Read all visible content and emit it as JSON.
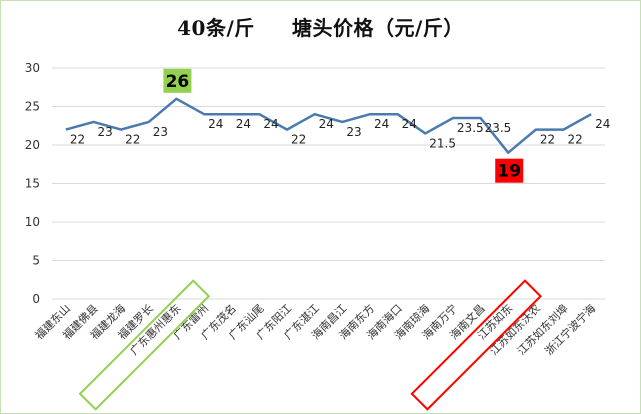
{
  "chart_data": {
    "type": "line",
    "title": "40条/斤     塘头价格（元/斤）",
    "xlabel": "",
    "ylabel": "",
    "ylim": [
      0,
      30
    ],
    "yticks": [
      0,
      5,
      10,
      15,
      20,
      25,
      30
    ],
    "grid": true,
    "legend": "none",
    "categories": [
      "福建东山",
      "福建佛县",
      "福建龙海",
      "福建罗长",
      "广东惠州惠东",
      "广东雷州",
      "广东茂名",
      "广东汕尾",
      "广东阳江",
      "广东湛江",
      "海南昌江",
      "海南东方",
      "海南海口",
      "海南琼海",
      "海南万宁",
      "海南文昌",
      "江苏如东",
      "江苏如东沃农",
      "江苏如东刘埠",
      "浙江宁波宁海"
    ],
    "series": [
      {
        "values": [
          22,
          23,
          22,
          23,
          26,
          24,
          24,
          24,
          22,
          24,
          23,
          24,
          24,
          21.5,
          23.5,
          23.5,
          19,
          22,
          22,
          24
        ]
      }
    ],
    "labels": [
      "22",
      "23",
      "22",
      "23",
      "26",
      "24",
      "24",
      "24",
      "22",
      "24",
      "23",
      "24",
      "24",
      "21.5",
      "23.5",
      "23.5",
      "19",
      "22",
      "22",
      "24"
    ],
    "callouts": [
      {
        "index": 4,
        "text": "26",
        "color": "#92d050"
      },
      {
        "index": 16,
        "text": "19",
        "color": "#ff0000"
      }
    ],
    "colors": {
      "line": "#4a7ab0",
      "grid": "#d9d9d9",
      "green": "#92d050",
      "red": "#ff0000"
    }
  }
}
